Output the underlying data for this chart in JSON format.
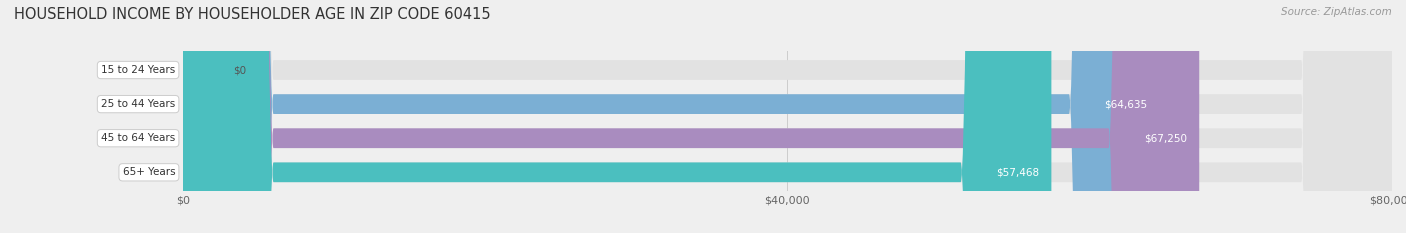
{
  "title": "HOUSEHOLD INCOME BY HOUSEHOLDER AGE IN ZIP CODE 60415",
  "source": "Source: ZipAtlas.com",
  "categories": [
    "15 to 24 Years",
    "25 to 44 Years",
    "45 to 64 Years",
    "65+ Years"
  ],
  "values": [
    0,
    64635,
    67250,
    57468
  ],
  "bar_colors": [
    "#f08080",
    "#7bafd4",
    "#a98cbf",
    "#4bbfbf"
  ],
  "background_color": "#efefef",
  "bar_bg_color": "#e2e2e2",
  "xlim": [
    0,
    80000
  ],
  "xtick_labels": [
    "$0",
    "$40,000",
    "$80,000"
  ],
  "title_fontsize": 10.5,
  "source_fontsize": 7.5,
  "bar_height": 0.58
}
